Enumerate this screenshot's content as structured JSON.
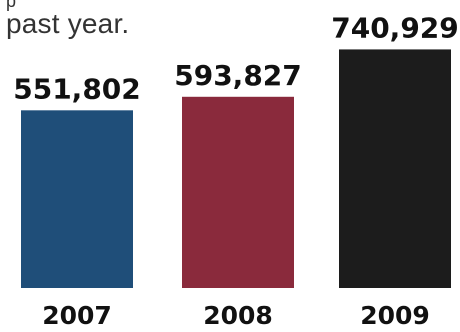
{
  "caption": {
    "cut_fragment": "p",
    "text": "past year."
  },
  "chart_data": {
    "type": "bar",
    "categories": [
      "2007",
      "2008",
      "2009"
    ],
    "values": [
      551802,
      593827,
      740929
    ],
    "value_labels": [
      "551,802",
      "593,827",
      "740,929"
    ],
    "colors": [
      "#1f4e79",
      "#8a2a3c",
      "#1c1c1c"
    ],
    "title": "",
    "xlabel": "",
    "ylabel": "",
    "grid": false
  }
}
